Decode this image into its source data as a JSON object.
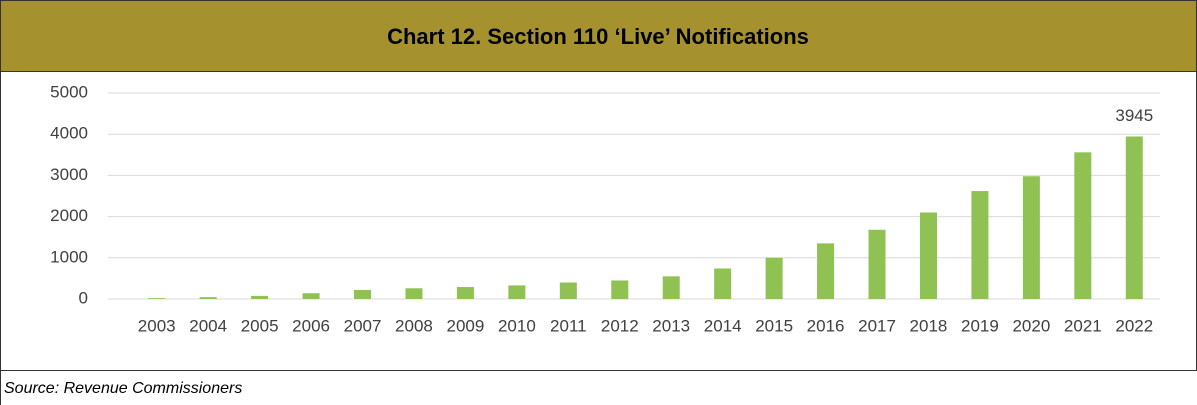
{
  "chart_data": {
    "type": "bar",
    "title": "Chart 12. Section 110 ‘Live’ Notifications",
    "categories": [
      "2003",
      "2004",
      "2005",
      "2006",
      "2007",
      "2008",
      "2009",
      "2010",
      "2011",
      "2012",
      "2013",
      "2014",
      "2015",
      "2016",
      "2017",
      "2018",
      "2019",
      "2020",
      "2021",
      "2022"
    ],
    "values": [
      20,
      45,
      75,
      140,
      220,
      260,
      290,
      330,
      400,
      450,
      550,
      740,
      1000,
      1350,
      1680,
      2100,
      2620,
      2980,
      3560,
      3945
    ],
    "value_labels": [
      null,
      null,
      null,
      null,
      null,
      null,
      null,
      null,
      null,
      null,
      null,
      null,
      null,
      null,
      null,
      null,
      null,
      null,
      null,
      "3945"
    ],
    "color": "#8fc153",
    "ylim": [
      0,
      5000
    ],
    "yticks": [
      0,
      1000,
      2000,
      3000,
      4000,
      5000
    ],
    "grid": true,
    "source": "Source: Revenue Commissioners"
  }
}
